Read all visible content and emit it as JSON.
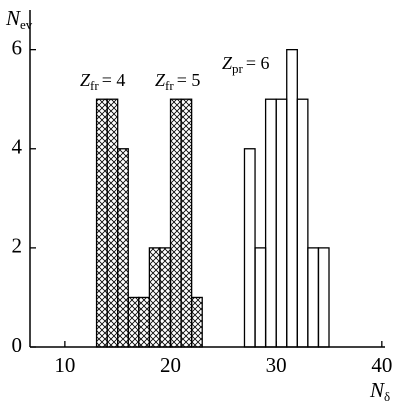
{
  "chart_data": {
    "type": "histogram",
    "y_label": {
      "base": "N",
      "sub": "ev"
    },
    "x_label": {
      "base": "N",
      "sub": "δ"
    },
    "annotations": [
      {
        "base": "Z",
        "sub": "fr",
        "text": "= 4"
      },
      {
        "base": "Z",
        "sub": "fr",
        "text": "= 5"
      },
      {
        "base": "Z",
        "sub": "pr",
        "text": "= 6"
      }
    ],
    "series": [
      {
        "bins": [
          13,
          14,
          15,
          16,
          17,
          18,
          19,
          20,
          21,
          22,
          23
        ],
        "values": [
          5,
          5,
          4,
          1,
          1,
          2,
          2,
          5,
          5,
          1
        ],
        "fill": "crosshatch"
      },
      {
        "bins": [
          27,
          28,
          29,
          30,
          31,
          32,
          33,
          34,
          35
        ],
        "values": [
          4,
          2,
          5,
          5,
          6,
          5,
          2,
          2
        ],
        "fill": "none"
      }
    ],
    "xlim": [
      6.7,
      40.3
    ],
    "xticks": [
      10,
      20,
      30,
      40
    ],
    "ylim": [
      0,
      6.8
    ],
    "yticks": [
      0,
      2,
      4,
      6
    ]
  }
}
